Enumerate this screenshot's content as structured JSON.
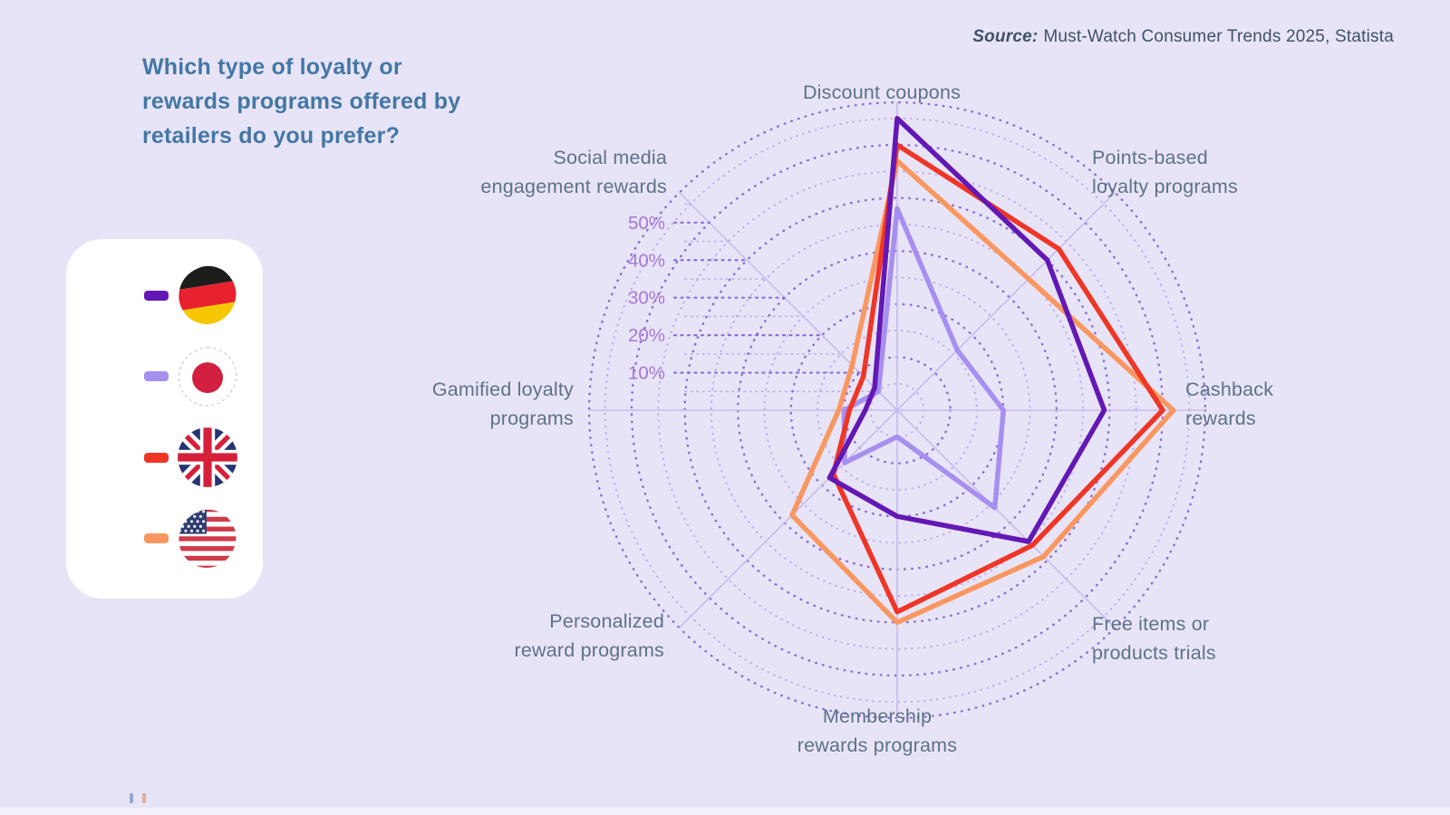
{
  "page": {
    "title": "Which type of loyalty or rewards programs offered by retailers do you prefer?",
    "source_label": "Source:",
    "source_text": "Must-Watch Consumer Trends 2025, Statista"
  },
  "legend": {
    "items": [
      {
        "name": "Germany",
        "icon": "germany-flag-icon"
      },
      {
        "name": "Japan",
        "icon": "japan-flag-icon"
      },
      {
        "name": "United Kingdom",
        "icon": "uk-flag-icon"
      },
      {
        "name": "United States",
        "icon": "usa-flag-icon"
      }
    ]
  },
  "chart_data": {
    "type": "radar",
    "title": "Which type of loyalty or rewards programs offered by retailers do you prefer?",
    "unit": "%",
    "grid": "dotted-concentric-circles",
    "legend_position": "left",
    "rmax": 58,
    "ticks": [
      10,
      20,
      30,
      40,
      50
    ],
    "tick_suffix": "%",
    "categories": [
      "Discount coupons",
      "Points-based loyalty programs",
      "Cashback rewards",
      "Free items or products trials",
      "Membership rewards programs",
      "Personalized reward programs",
      "Gamified loyalty programs",
      "Social media engagement rewards"
    ],
    "axis_labels": [
      [
        "Discount coupons"
      ],
      [
        "Points-based",
        "loyalty programs"
      ],
      [
        "Cashback",
        "rewards"
      ],
      [
        "Free items or",
        "products trials"
      ],
      [
        "Membership",
        "rewards programs"
      ],
      [
        "Personalized",
        "reward programs"
      ],
      [
        "Gamified loyalty",
        "programs"
      ],
      [
        "Social media",
        "engagement rewards"
      ]
    ],
    "series": [
      {
        "name": "Japan",
        "color": "#a78ff0",
        "values": [
          38,
          16,
          20,
          26,
          5,
          14,
          10,
          5
        ]
      },
      {
        "name": "United States",
        "color": "#f99760",
        "values": [
          47,
          35,
          52,
          39,
          40,
          28,
          11,
          12
        ]
      },
      {
        "name": "United Kingdom",
        "color": "#ef3626",
        "values": [
          50,
          43,
          50,
          36,
          38,
          17,
          9,
          9
        ]
      },
      {
        "name": "Germany",
        "color": "#6318b4",
        "values": [
          55,
          40,
          39,
          35,
          20,
          18,
          6,
          6
        ]
      }
    ],
    "legend_order": [
      "Germany",
      "Japan",
      "United Kingdom",
      "United States"
    ]
  },
  "colors": {
    "background": "#e8e4f7",
    "title_text": "#4377a5",
    "source_text": "#3e5169",
    "axis_label_text": "#5d7289",
    "tick_label_text": "#a478d4",
    "ring_major": "#8066d4",
    "ring_minor": "#b9aaee",
    "axis_line": "#c8baee",
    "leader_major": "#8a6ed8",
    "leader_minor": "#c0b1f0"
  }
}
